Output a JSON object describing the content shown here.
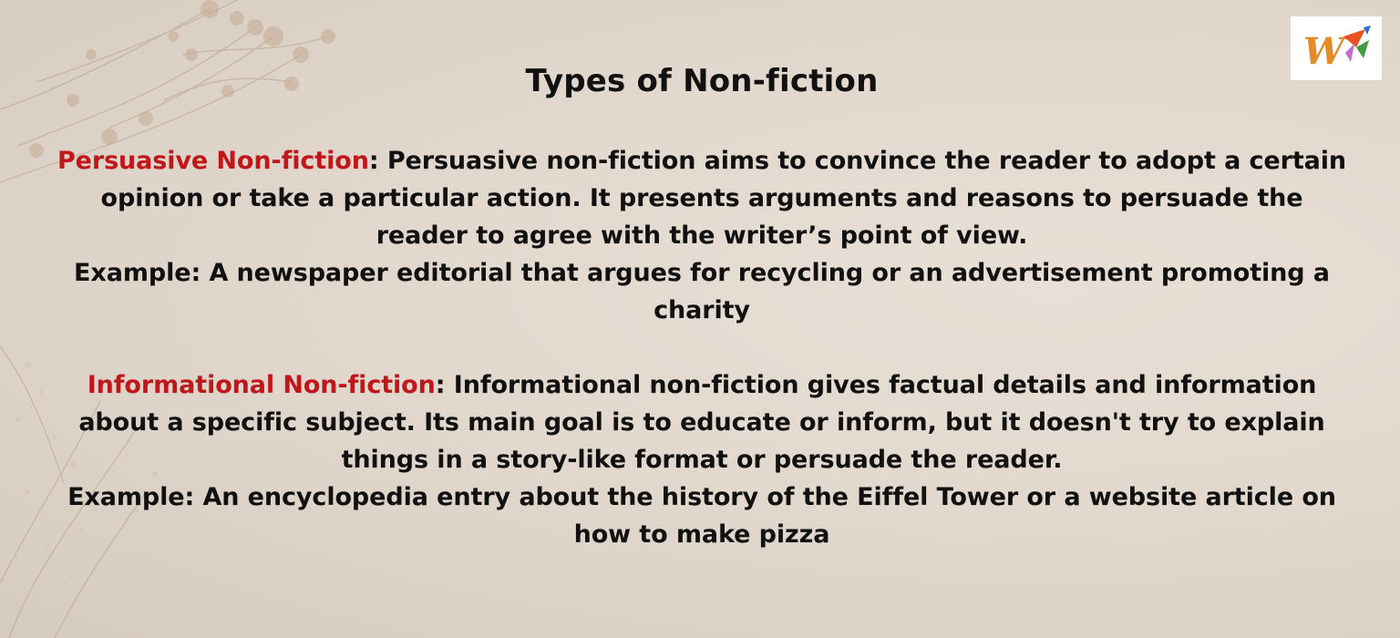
{
  "title": "Types of Non-fiction",
  "sections": [
    {
      "term": "Persuasive Non-fiction",
      "separator": ":",
      "description": " Persuasive non-fiction aims to convince the reader to adopt a certain opinion or take a particular action. It presents arguments and reasons to persuade the reader to agree with the writer’s point of view.",
      "example": "Example: A newspaper editorial that argues for recycling or an advertisement promoting a charity"
    },
    {
      "term": "Informational Non-fiction",
      "separator": ":",
      "description": " Informational non-fiction gives factual details and information about a specific subject. Its main goal is to educate or inform, but it doesn't try to explain things in a story-like format or persuade the reader.",
      "example": "Example: An encyclopedia entry about the history of the Eiffel Tower or a website article on how to make pizza"
    }
  ],
  "logo": {
    "icon": "w-brand-logo-icon",
    "letter": "W"
  },
  "colors": {
    "term": "#c0171a",
    "text": "#111111",
    "background": "#e2d8ce"
  }
}
